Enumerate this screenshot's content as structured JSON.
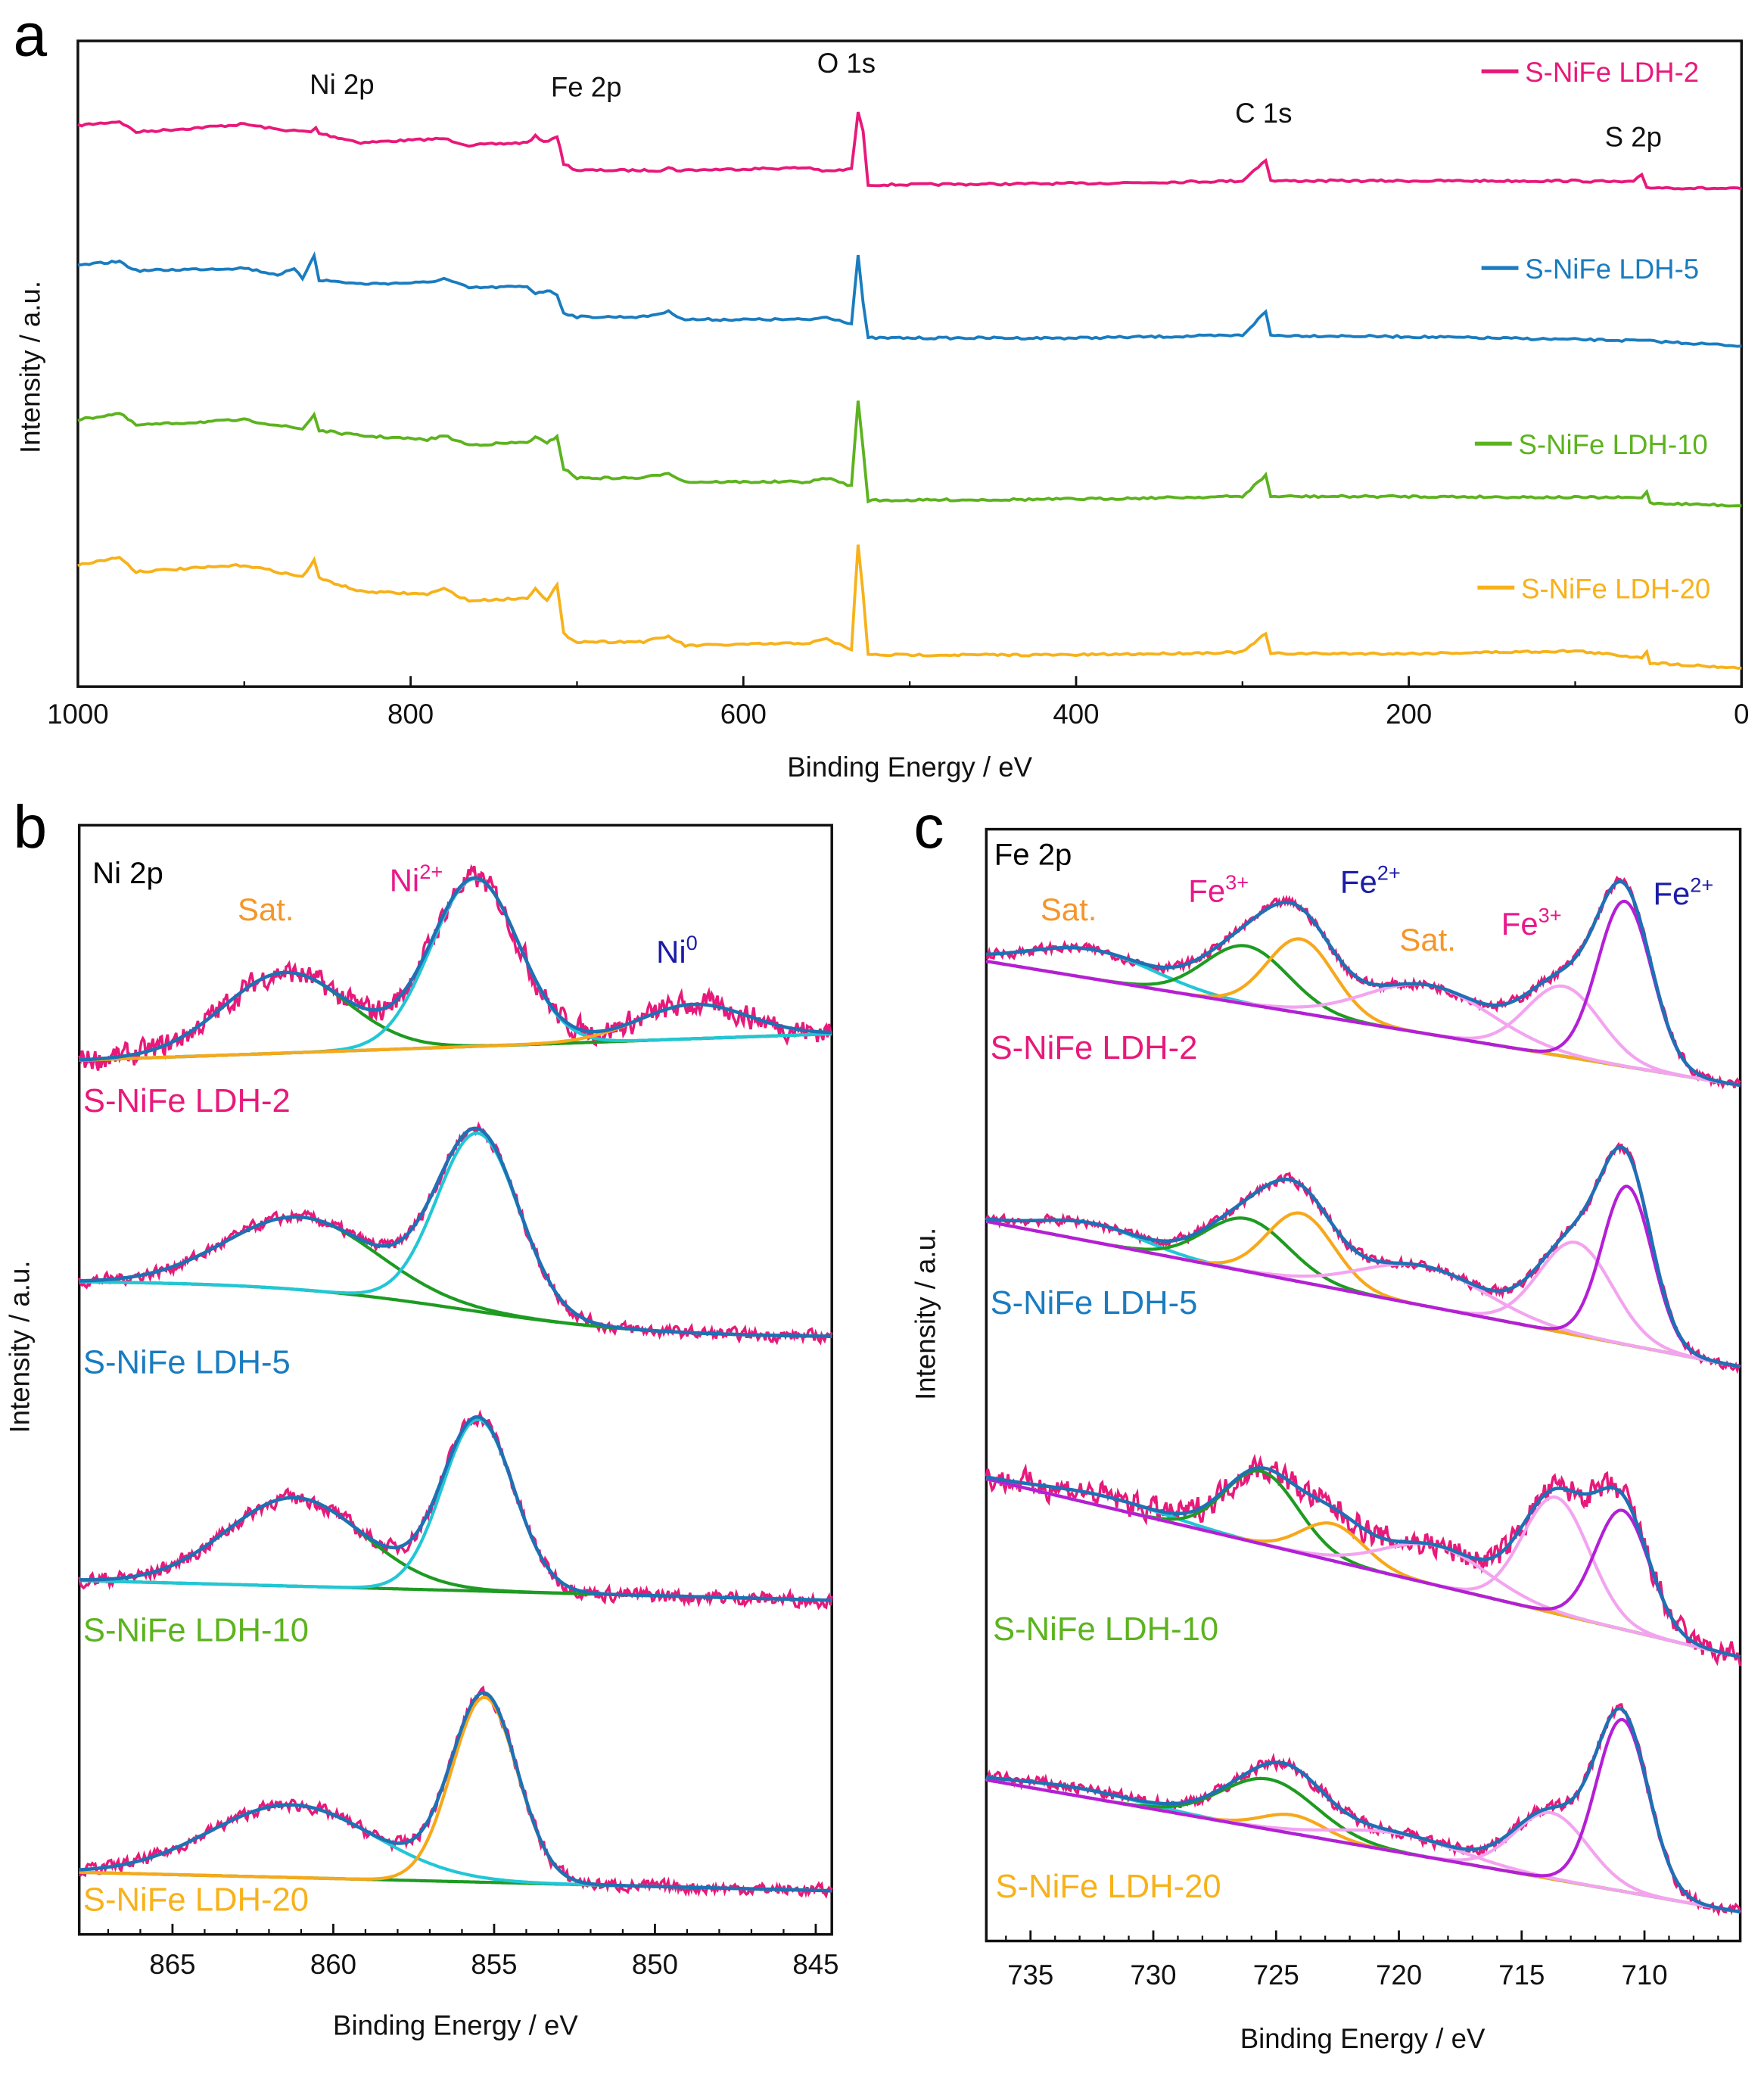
{
  "colors": {
    "ldh2": "#e8197a",
    "ldh5": "#1a7cc0",
    "ldh10": "#5cb31e",
    "ldh20": "#f7b21b",
    "envelope": "#1f70b4",
    "cyan": "#22c6d6",
    "green": "#1e9b22",
    "orange": "#f7a81b",
    "purple": "#b41fd6",
    "lightpink": "#f3a4ef",
    "navy": "#1c1ca8",
    "pinklabel": "#e8198b",
    "orangelabel": "#f5962a"
  },
  "panels": {
    "a": {
      "letter": "a"
    },
    "b": {
      "letter": "b",
      "title": "Ni 2p"
    },
    "c": {
      "letter": "c",
      "title": "Fe 2p"
    }
  },
  "chart_data": [
    {
      "id": "a",
      "type": "line",
      "xlabel": "Binding Energy / eV",
      "ylabel": "Intensity / a.u.",
      "xlim": [
        1000,
        0
      ],
      "ylim": [
        0,
        489
      ],
      "xticks": [
        1000,
        800,
        600,
        400,
        200,
        0
      ],
      "grid": false,
      "legend_position": "right",
      "annotations": [
        {
          "text": "Ni 2p",
          "x": 855
        },
        {
          "text": "Fe 2p",
          "x": 712
        },
        {
          "text": "O 1s",
          "x": 531
        },
        {
          "text": "C 1s",
          "x": 285
        },
        {
          "text": "S 2p",
          "x": 60
        }
      ],
      "series": [
        {
          "name": "S-NiFe LDH-2",
          "color": "#e8197a",
          "x": [
            1000,
            975,
            965,
            930,
            900,
            880,
            860,
            857,
            855,
            830,
            780,
            765,
            730,
            725,
            720,
            712,
            708,
            700,
            650,
            645,
            640,
            560,
            550,
            535,
            531,
            528,
            525,
            400,
            300,
            286,
            283,
            200,
            100,
            65,
            60,
            57,
            0
          ],
          "y": [
            425,
            428,
            420,
            423,
            426,
            422,
            420,
            423,
            419,
            412,
            415,
            410,
            412,
            417,
            412,
            417,
            396,
            391,
            391,
            393,
            391,
            393,
            390,
            392,
            435,
            420,
            380,
            381,
            383,
            399,
            383,
            383,
            383,
            382,
            388,
            378,
            377
          ]
        },
        {
          "name": "S-NiFe LDH-5",
          "color": "#1a7cc0",
          "x": [
            1000,
            975,
            965,
            900,
            880,
            870,
            865,
            858,
            855,
            830,
            790,
            780,
            765,
            730,
            725,
            718,
            712,
            708,
            700,
            660,
            645,
            635,
            560,
            550,
            535,
            531,
            528,
            525,
            400,
            300,
            286,
            283,
            200,
            60,
            0
          ],
          "y": [
            319,
            322,
            315,
            317,
            312,
            316,
            309,
            327,
            308,
            305,
            306,
            309,
            302,
            303,
            298,
            300,
            297,
            283,
            280,
            280,
            284,
            278,
            278,
            280,
            275,
            327,
            290,
            264,
            264,
            266,
            284,
            266,
            265,
            262,
            258
          ]
        },
        {
          "name": "S-NiFe LDH-10",
          "color": "#5cb31e",
          "x": [
            1000,
            975,
            965,
            900,
            880,
            865,
            858,
            855,
            830,
            790,
            780,
            765,
            730,
            725,
            718,
            712,
            708,
            700,
            660,
            645,
            635,
            560,
            550,
            535,
            531,
            528,
            525,
            400,
            300,
            286,
            283,
            200,
            60,
            57,
            55,
            0
          ],
          "y": [
            202,
            207,
            198,
            202,
            198,
            195,
            206,
            194,
            190,
            187,
            190,
            183,
            185,
            189,
            184,
            190,
            165,
            158,
            158,
            162,
            155,
            155,
            158,
            152,
            217,
            180,
            141,
            142,
            144,
            160,
            144,
            144,
            143,
            148,
            139,
            137
          ]
        },
        {
          "name": "S-NiFe LDH-20",
          "color": "#f7b21b",
          "x": [
            1000,
            975,
            965,
            900,
            880,
            865,
            858,
            855,
            830,
            790,
            780,
            765,
            730,
            725,
            718,
            712,
            708,
            700,
            660,
            645,
            635,
            560,
            550,
            535,
            531,
            528,
            525,
            400,
            300,
            286,
            283,
            200,
            100,
            60,
            57,
            55,
            0
          ],
          "y": [
            92,
            98,
            87,
            92,
            87,
            83,
            96,
            82,
            72,
            70,
            74,
            65,
            67,
            75,
            65,
            77,
            40,
            34,
            34,
            38,
            31,
            33,
            36,
            28,
            108,
            70,
            24,
            24,
            26,
            40,
            25,
            25,
            27,
            22,
            27,
            18,
            14
          ]
        }
      ]
    },
    {
      "id": "b",
      "type": "line",
      "title": "Ni 2p",
      "xlabel": "Binding Energy / eV",
      "ylabel": "Intensity / a.u.",
      "xlim": [
        867.9,
        844.5
      ],
      "ylim": [
        0,
        840
      ],
      "xticks": [
        865,
        860,
        855,
        850,
        845
      ],
      "grid": false,
      "peak_labels": [
        {
          "base": "Sat.",
          "sup": "",
          "color": "#f5962a"
        },
        {
          "base": "Ni",
          "sup": "2+",
          "color": "#e8198b"
        },
        {
          "base": "Ni",
          "sup": "0",
          "color": "#1c1ca8"
        }
      ],
      "spectra": [
        {
          "name": "S-NiFe LDH-2",
          "color": "#e8197a",
          "noise": 10,
          "background": {
            "left": 662,
            "right": 682
          },
          "components": [
            {
              "label": "Sat.",
              "color": "#1e9b22",
              "center": 861.5,
              "amplitude": 61,
              "fwhm": 4.5
            },
            {
              "label": "Ni2+",
              "color": "#22c6d6",
              "center": 855.6,
              "amplitude": 127,
              "fwhm": 3.2
            },
            {
              "label": "Ni0",
              "color": "#f7a81b",
              "center": 848.8,
              "amplitude": 26,
              "fwhm": 4
            }
          ]
        },
        {
          "name": "S-NiFe LDH-5",
          "color": "#1a7cc0",
          "noise": 5,
          "background": {
            "left": 495,
            "right": 452,
            "step_center": 856,
            "step_width": 3
          },
          "components": [
            {
              "label": "Sat.",
              "color": "#1e9b22",
              "center": 861,
              "amplitude": 55,
              "fwhm": 5.5
            },
            {
              "label": "Ni2+",
              "color": "#22c6d6",
              "center": 855.5,
              "amplitude": 135,
              "fwhm": 3.0
            }
          ]
        },
        {
          "name": "S-NiFe LDH-10",
          "color": "#5cb31e",
          "noise": 6,
          "background": {
            "left": 268,
            "right": 253
          },
          "components": [
            {
              "label": "Sat.",
              "color": "#1e9b22",
              "center": 861.2,
              "amplitude": 67,
              "fwhm": 5
            },
            {
              "label": "Ni2+",
              "color": "#22c6d6",
              "center": 855.5,
              "amplitude": 130,
              "fwhm": 2.6
            }
          ]
        },
        {
          "name": "S-NiFe LDH-20",
          "color": "#f7b21b",
          "noise": 5,
          "background": {
            "left": 47,
            "right": 33
          },
          "components": [
            {
              "label": "Sat.",
              "color": "#22c6d6",
              "center": 861.3,
              "amplitude": 55,
              "fwhm": 6
            },
            {
              "label": "Ni2+",
              "color": "#f7a81b",
              "center": 855.3,
              "amplitude": 140,
              "fwhm": 2.4
            }
          ]
        }
      ]
    },
    {
      "id": "c",
      "type": "line",
      "title": "Fe 2p",
      "xlabel": "Binding Energy / eV",
      "ylabel": "Intensity / a.u.",
      "xlim": [
        736.8,
        706.1
      ],
      "ylim": [
        0,
        842
      ],
      "xticks": [
        735,
        730,
        725,
        720,
        715,
        710
      ],
      "grid": false,
      "peak_labels": [
        {
          "base": "Sat.",
          "sup": "",
          "color": "#f5962a"
        },
        {
          "base": "Fe",
          "sup": "3+",
          "color": "#e8198b"
        },
        {
          "base": "Fe",
          "sup": "2+",
          "color": "#1c1ca8"
        },
        {
          "base": "Sat.",
          "sup": "",
          "color": "#f5962a"
        },
        {
          "base": "Fe",
          "sup": "3+",
          "color": "#e8198b"
        },
        {
          "base": "Fe",
          "sup": "2+",
          "color": "#1c1ca8"
        }
      ],
      "spectra": [
        {
          "name": "S-NiFe LDH-2",
          "color": "#e8197a",
          "noise": 4,
          "background": {
            "left": 742,
            "right": 648
          },
          "components": [
            {
              "label": "Sat.",
              "color": "#22c6d6",
              "center": 732.5,
              "amplitude": 22,
              "fwhm": 6
            },
            {
              "label": "Fe3+",
              "color": "#1e9b22",
              "center": 726.2,
              "amplitude": 44,
              "fwhm": 4
            },
            {
              "label": "Fe2+",
              "color": "#f7a81b",
              "center": 724.0,
              "amplitude": 56,
              "fwhm": 3.2
            },
            {
              "label": "Sat.",
              "color": "#f3a4ef",
              "center": 718.8,
              "amplitude": 37,
              "fwhm": 6
            },
            {
              "label": "Fe3+",
              "color": "#f3a4ef",
              "center": 713.3,
              "amplitude": 53,
              "fwhm": 3.5
            },
            {
              "label": "Fe2+",
              "color": "#b41fd6",
              "center": 710.8,
              "amplitude": 125,
              "fwhm": 2.6
            }
          ]
        },
        {
          "name": "S-NiFe LDH-5",
          "color": "#1a7cc0",
          "noise": 4,
          "background": {
            "left": 545,
            "right": 435
          },
          "components": [
            {
              "label": "Sat.",
              "color": "#22c6d6",
              "center": 732.5,
              "amplitude": 14,
              "fwhm": 5
            },
            {
              "label": "Fe3+",
              "color": "#1e9b22",
              "center": 726.2,
              "amplitude": 40,
              "fwhm": 4
            },
            {
              "label": "Fe2+",
              "color": "#f7a81b",
              "center": 724.0,
              "amplitude": 52,
              "fwhm": 3.2
            },
            {
              "label": "Sat.",
              "color": "#f3a4ef",
              "center": 719.0,
              "amplitude": 30,
              "fwhm": 6
            },
            {
              "label": "Fe3+",
              "color": "#f3a4ef",
              "center": 712.8,
              "amplitude": 70,
              "fwhm": 3.5
            },
            {
              "label": "Fe2+",
              "color": "#b41fd6",
              "center": 710.7,
              "amplitude": 120,
              "fwhm": 2.4
            }
          ]
        },
        {
          "name": "S-NiFe LDH-10",
          "color": "#5cb31e",
          "noise": 11,
          "background": {
            "left": 350,
            "right": 215
          },
          "components": [
            {
              "label": "Sat.",
              "color": "#22c6d6",
              "center": 732.0,
              "amplitude": 8,
              "fwhm": 6
            },
            {
              "label": "Fe3+",
              "color": "#1e9b22",
              "center": 725.6,
              "amplitude": 55,
              "fwhm": 3.5
            },
            {
              "label": "Fe2+",
              "color": "#f7a81b",
              "center": 722.7,
              "amplitude": 28,
              "fwhm": 3
            },
            {
              "label": "Sat.",
              "color": "#f3a4ef",
              "center": 718.5,
              "amplitude": 30,
              "fwhm": 5
            },
            {
              "label": "Fe3+",
              "color": "#f3a4ef",
              "center": 713.6,
              "amplitude": 88,
              "fwhm": 3.2
            },
            {
              "label": "Fe2+",
              "color": "#b41fd6",
              "center": 710.9,
              "amplitude": 90,
              "fwhm": 2.6
            }
          ]
        },
        {
          "name": "S-NiFe LDH-20",
          "color": "#f7b21b",
          "noise": 5,
          "background": {
            "left": 122,
            "right": 22
          },
          "components": [
            {
              "label": "Sat.",
              "color": "#22c6d6",
              "center": 733.0,
              "amplitude": 6,
              "fwhm": 6
            },
            {
              "label": "Fe3+",
              "color": "#1e9b22",
              "center": 725.3,
              "amplitude": 38,
              "fwhm": 4.5
            },
            {
              "label": "Fe2+",
              "color": "#f7a81b",
              "center": 724.3,
              "amplitude": 14,
              "fwhm": 3
            },
            {
              "label": "Sat.",
              "color": "#f3a4ef",
              "center": 720.0,
              "amplitude": 14,
              "fwhm": 6
            },
            {
              "label": "Fe3+",
              "color": "#f3a4ef",
              "center": 713.8,
              "amplitude": 50,
              "fwhm": 3.5
            },
            {
              "label": "Fe2+",
              "color": "#b41fd6",
              "center": 710.9,
              "amplitude": 130,
              "fwhm": 2.5
            }
          ]
        }
      ]
    }
  ]
}
